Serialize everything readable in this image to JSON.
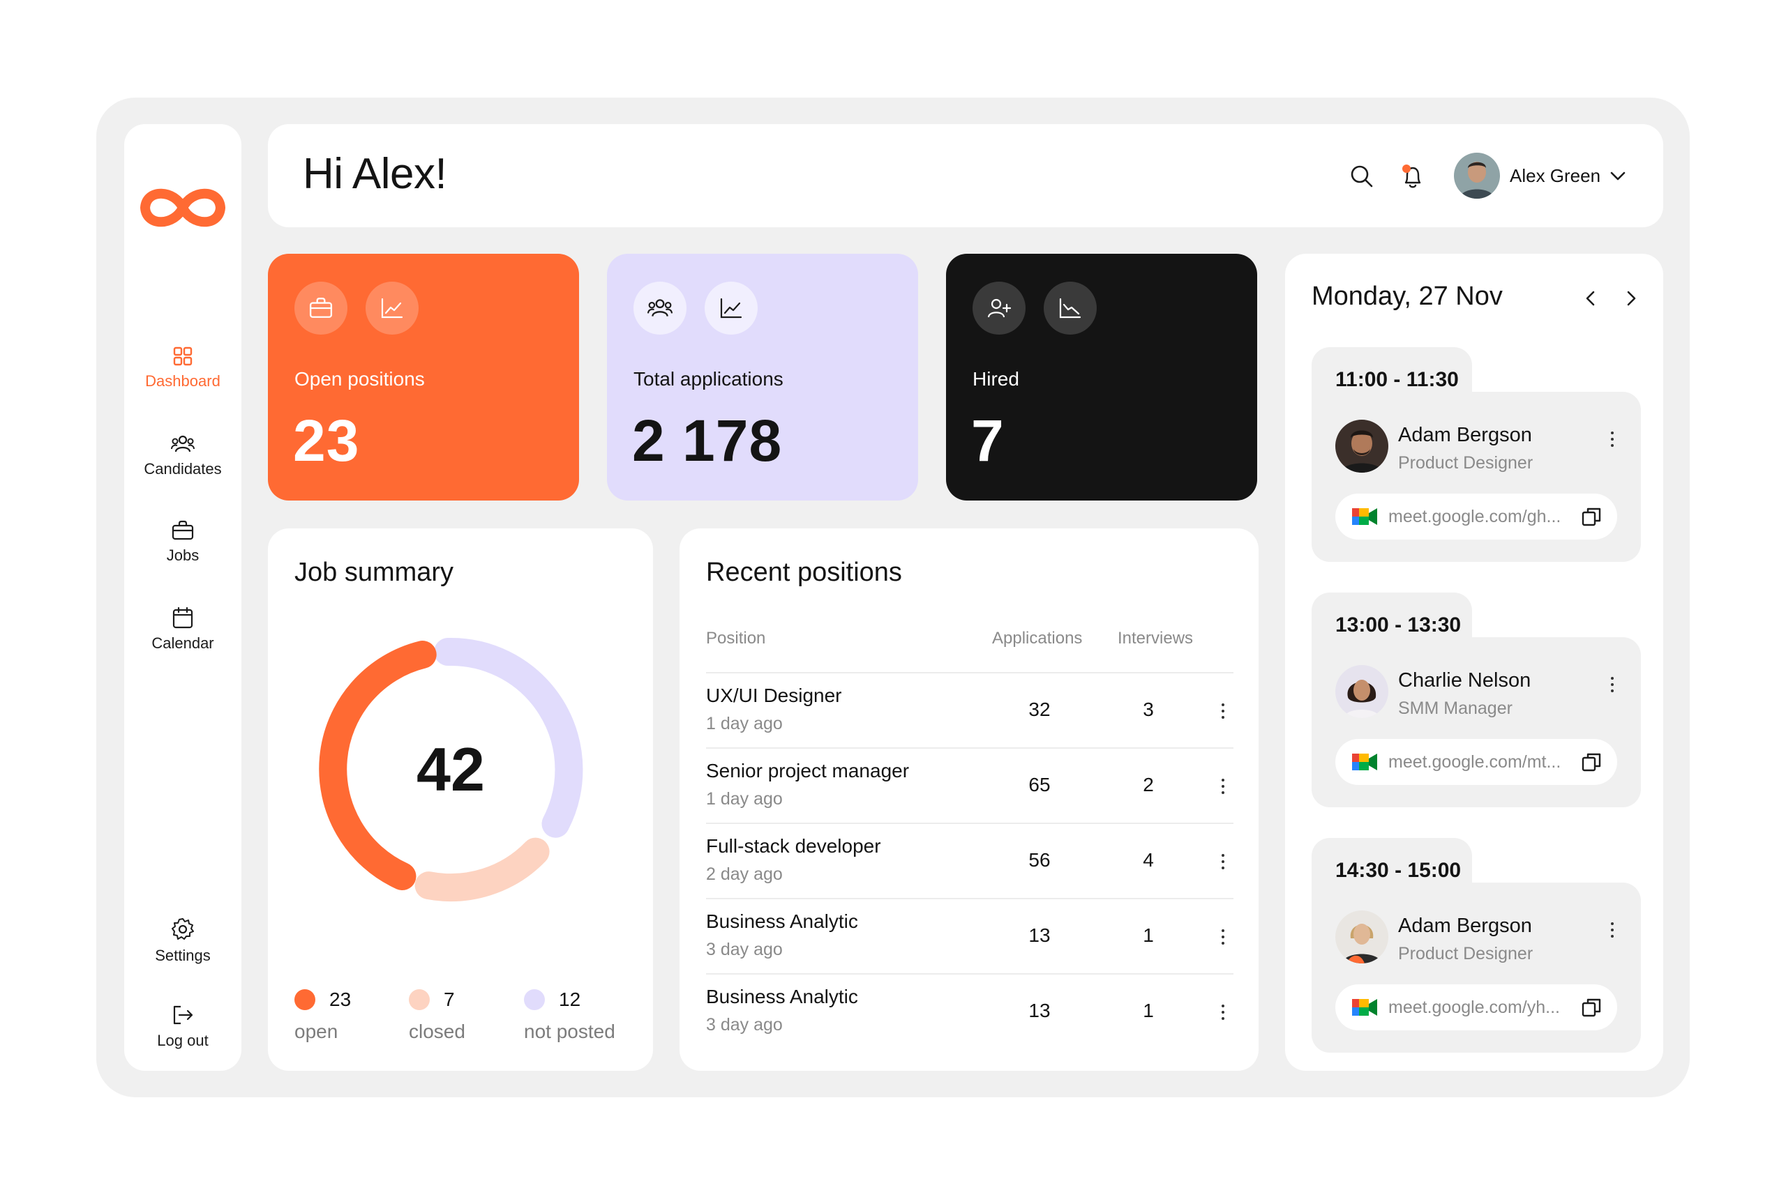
{
  "sidebar": {
    "items": [
      {
        "label": "Dashboard",
        "icon": "dashboard-icon",
        "active": true
      },
      {
        "label": "Candidates",
        "icon": "candidates-icon"
      },
      {
        "label": "Jobs",
        "icon": "briefcase-icon"
      },
      {
        "label": "Calendar",
        "icon": "calendar-icon"
      }
    ],
    "bottom_items": [
      {
        "label": "Settings",
        "icon": "gear-icon"
      },
      {
        "label": "Log out",
        "icon": "logout-icon"
      }
    ]
  },
  "header": {
    "greeting": "Hi Alex!",
    "user_name": "Alex Green"
  },
  "stats": [
    {
      "label": "Open positions",
      "value": "23",
      "icons": [
        "briefcase-icon",
        "chart-up-icon"
      ]
    },
    {
      "label": "Total applications",
      "value": "2 178",
      "icons": [
        "people-icon",
        "chart-up-icon"
      ]
    },
    {
      "label": "Hired",
      "value": "7",
      "icons": [
        "add-user-icon",
        "chart-down-icon"
      ]
    }
  ],
  "job_summary": {
    "title": "Job summary",
    "total": "42",
    "legend": [
      {
        "count": "23",
        "label": "open",
        "color": "#ff6a33"
      },
      {
        "count": "7",
        "label": "closed",
        "color": "#fdd3c1"
      },
      {
        "count": "12",
        "label": "not posted",
        "color": "#e1dcfc"
      }
    ]
  },
  "recent_positions": {
    "title": "Recent positions",
    "columns": [
      "Position",
      "Applications",
      "Interviews"
    ],
    "rows": [
      {
        "position": "UX/UI Designer",
        "ago": "1 day ago",
        "applications": "32",
        "interviews": "3"
      },
      {
        "position": "Senior project manager",
        "ago": "1 day ago",
        "applications": "65",
        "interviews": "2"
      },
      {
        "position": "Full-stack developer",
        "ago": "2 day ago",
        "applications": "56",
        "interviews": "4"
      },
      {
        "position": "Business Analytic",
        "ago": "3 day ago",
        "applications": "13",
        "interviews": "1"
      },
      {
        "position": "Business Analytic",
        "ago": "3 day ago",
        "applications": "13",
        "interviews": "1"
      }
    ]
  },
  "calendar": {
    "date": "Monday, 27 Nov",
    "meetings": [
      {
        "time": "11:00 - 11:30",
        "name": "Adam Bergson",
        "role": "Product Designer",
        "link": "meet.google.com/gh..."
      },
      {
        "time": "13:00 - 13:30",
        "name": "Charlie Nelson",
        "role": "SMM Manager",
        "link": "meet.google.com/mt..."
      },
      {
        "time": "14:30 - 15:00",
        "name": "Adam Bergson",
        "role": "Product Designer",
        "link": "meet.google.com/yh..."
      }
    ]
  },
  "colors": {
    "accent": "#ff6a33",
    "lavender": "#e1dcfc",
    "peach": "#fdd3c1",
    "dark": "#141414"
  }
}
